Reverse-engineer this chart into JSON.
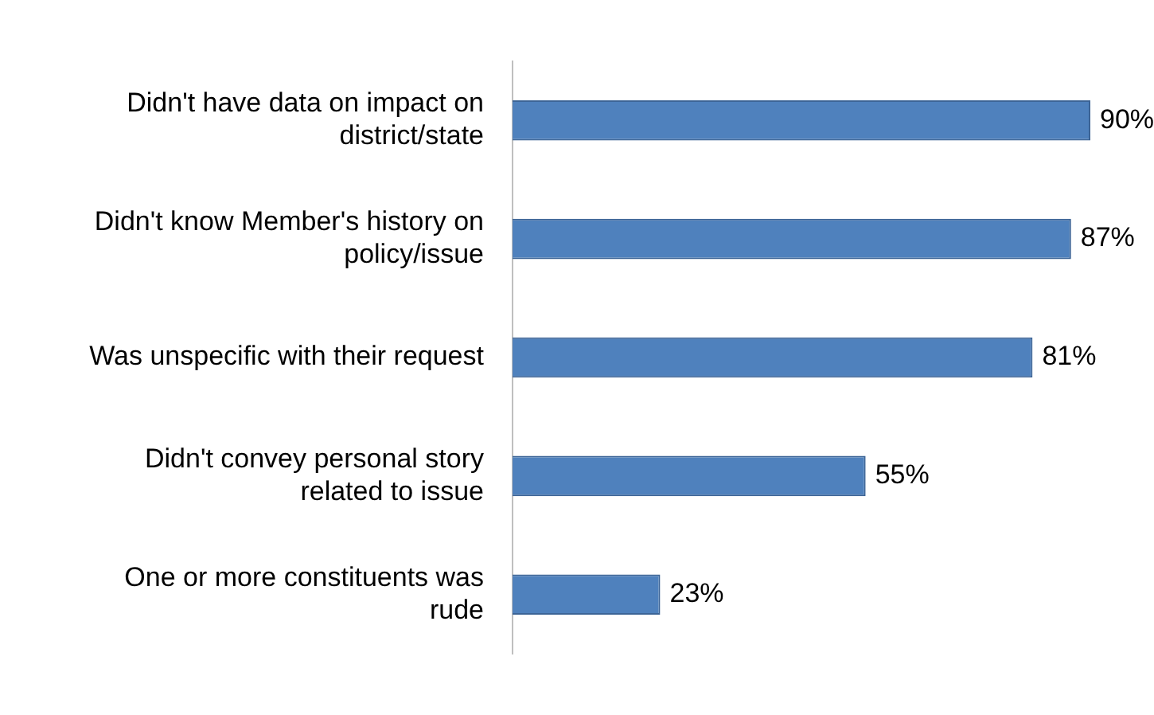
{
  "chart_data": {
    "type": "bar",
    "orientation": "horizontal",
    "categories": [
      "Didn't have data on impact on district/state",
      "Didn't know Member's history on policy/issue",
      "Was unspecific with their request",
      "Didn't convey personal story related to issue",
      "One or more constituents was rude"
    ],
    "values": [
      90,
      87,
      81,
      55,
      23
    ],
    "value_labels": [
      "90%",
      "87%",
      "81%",
      "55%",
      "23%"
    ],
    "color": "#4f81bd",
    "tick_labels": "y",
    "grid": false,
    "legend": false
  }
}
